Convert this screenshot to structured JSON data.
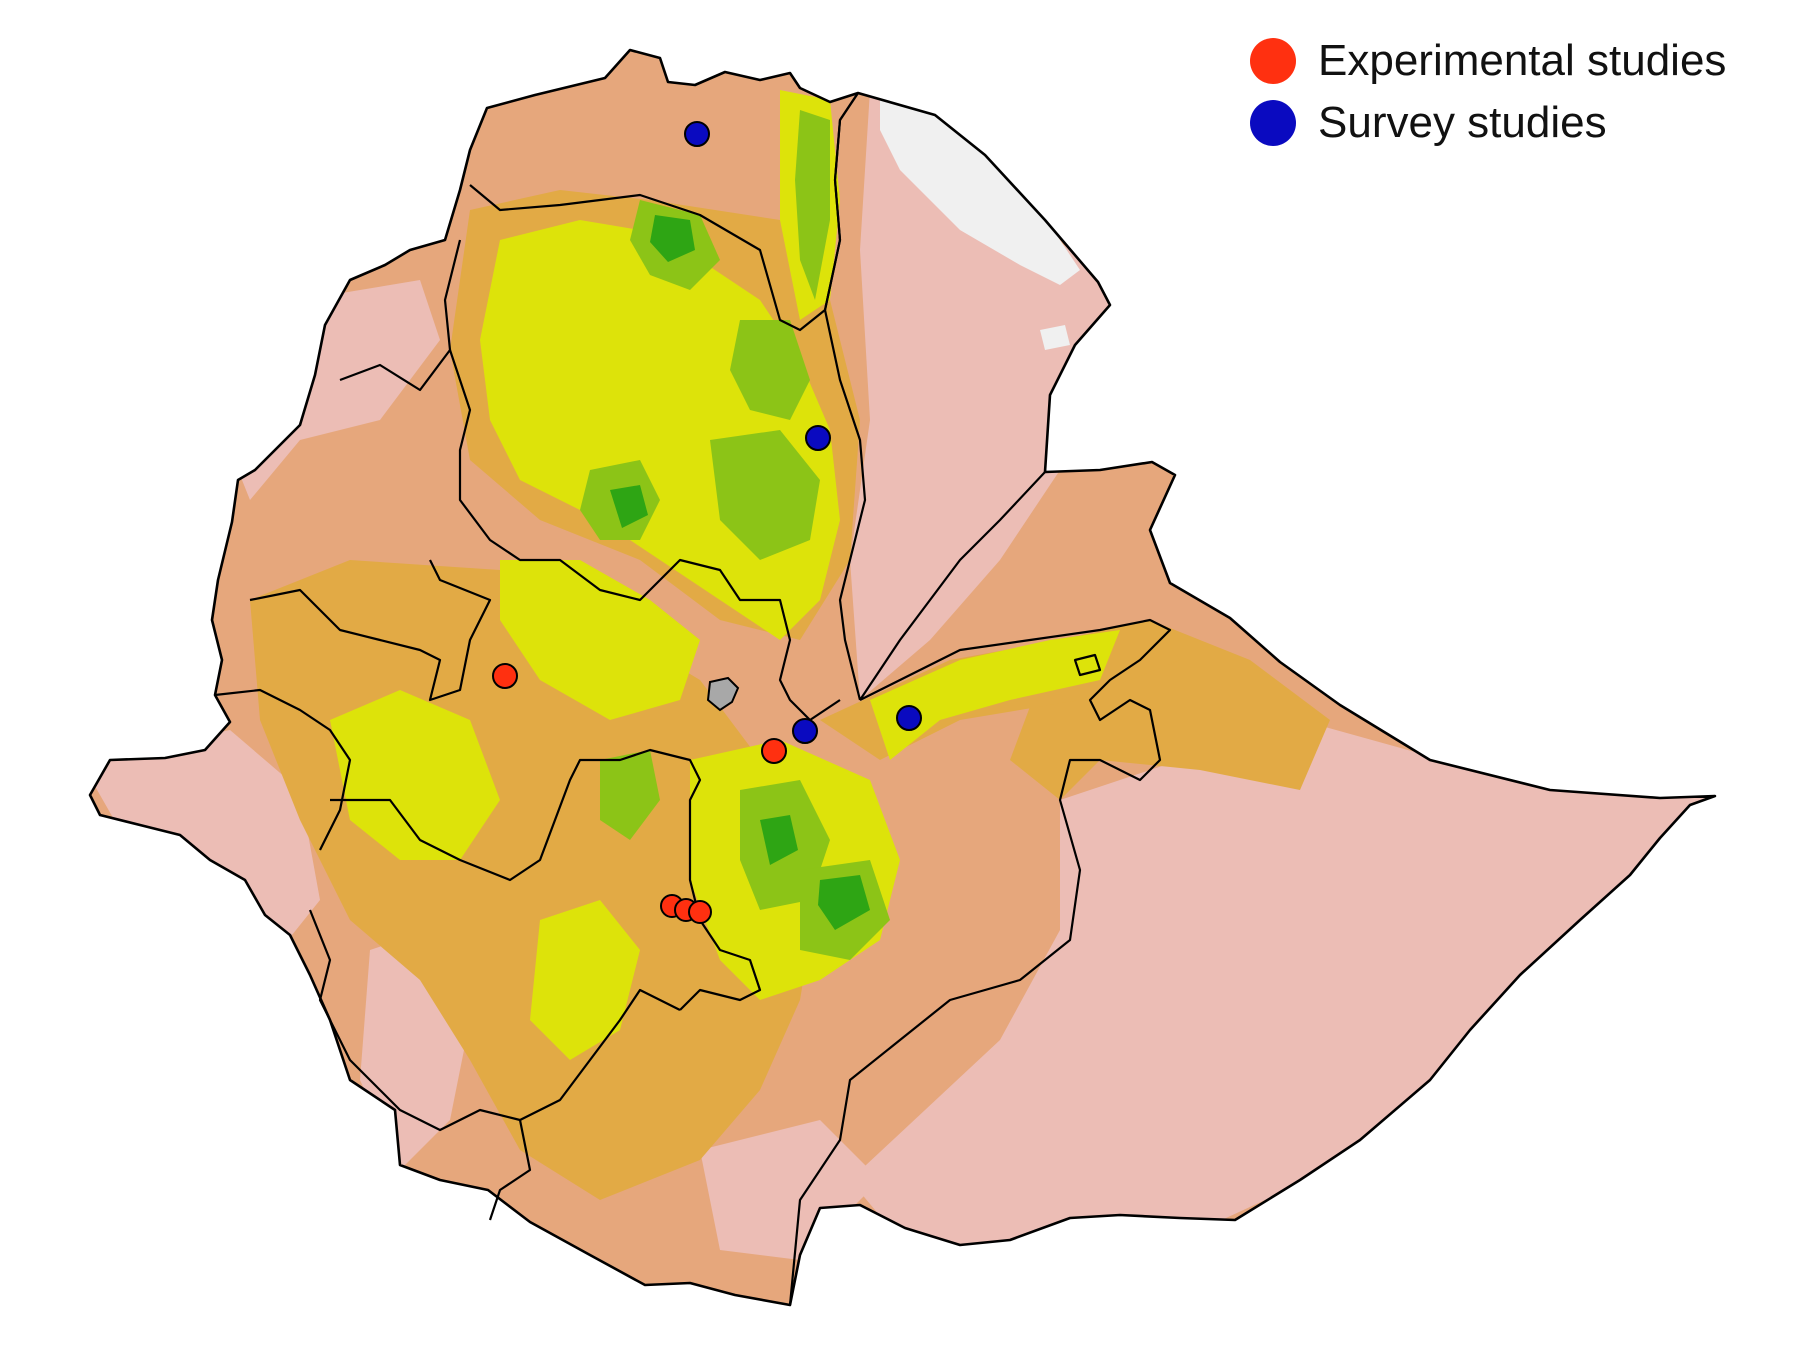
{
  "legend": {
    "items": [
      {
        "label": "Experimental studies",
        "color": "#ff3010"
      },
      {
        "label": "Survey studies",
        "color": "#0a0ac0"
      }
    ]
  },
  "colors": {
    "lowland": "#ecbdb5",
    "midland": "#e6a77c",
    "upland": "#e2aa45",
    "highland_yellow": "#dde30a",
    "highland_green": "#8cc417",
    "peak_green": "#2ea514",
    "depression": "#f0f0f0",
    "lake": "#a8a8a8",
    "border": "#000000"
  },
  "markers": {
    "experimental_icon": "red-circle-icon",
    "survey_icon": "blue-circle-icon"
  }
}
